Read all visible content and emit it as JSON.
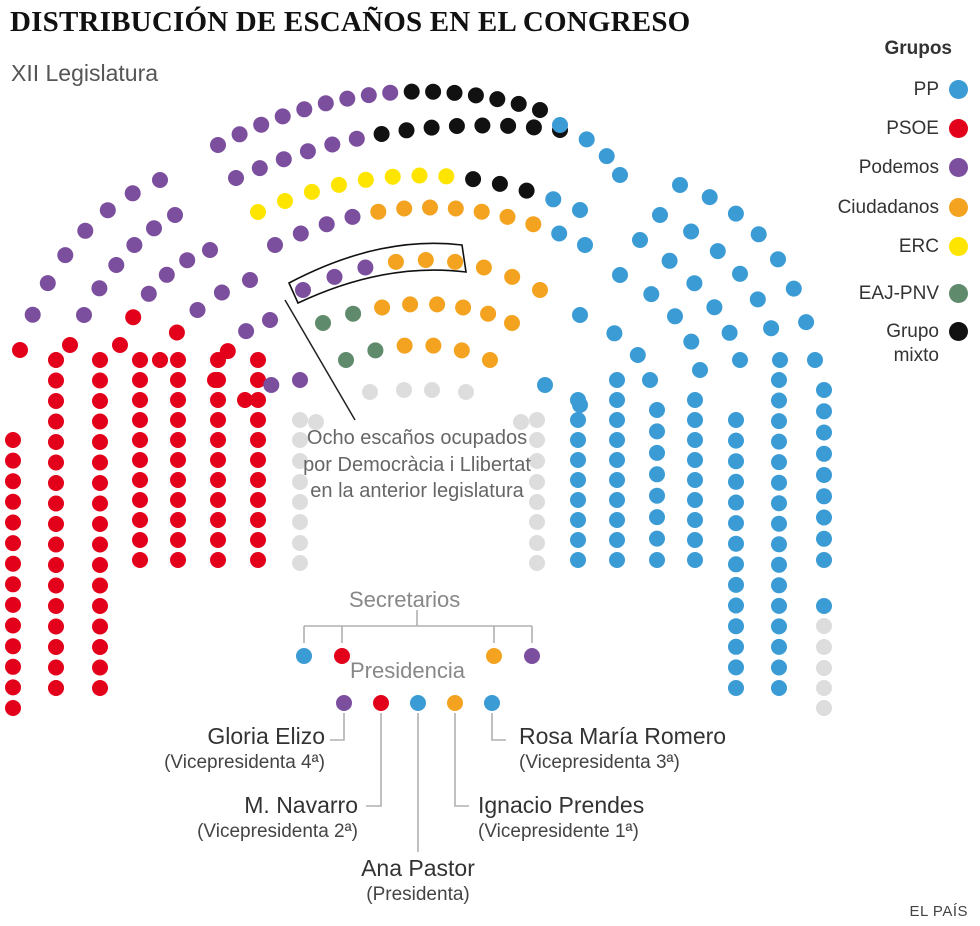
{
  "title": "DISTRIBUCIÓN DE ESCAÑOS EN EL CONGRESO",
  "subtitle": "XII Legislatura",
  "legend": {
    "title": "Grupos",
    "items": [
      {
        "label": "PP",
        "color": "#3a9bd5"
      },
      {
        "label": "PSOE",
        "color": "#e2001a"
      },
      {
        "label": "Podemos",
        "color": "#7b4f9e"
      },
      {
        "label": "Ciudadanos",
        "color": "#f3a320"
      },
      {
        "label": "ERC",
        "color": "#fde500"
      },
      {
        "label": "EAJ-PNV",
        "color": "#5f8a6c"
      },
      {
        "label": "Grupo mixto",
        "color": "#111111"
      }
    ]
  },
  "empty_color": "#dddddd",
  "note": "Ocho escaños ocupados por Democràcia i Llibertat en la anterior legislatura",
  "secretarios": {
    "label": "Secretarios",
    "parties": [
      "PP",
      "PSOE",
      "Ciudadanos",
      "Podemos"
    ]
  },
  "presidencia": {
    "label": "Presidencia",
    "members": [
      {
        "name": "Gloria Elizo",
        "role": "(Vicepresidenta 4ª)",
        "party": "Podemos"
      },
      {
        "name": "M. Navarro",
        "role": "(Vicepresidenta 2ª)",
        "party": "PSOE"
      },
      {
        "name": "Ana Pastor",
        "role": "(Presidenta)",
        "party": "PP"
      },
      {
        "name": "Ignacio Prendes",
        "role": "(Vicepresidente 1ª)",
        "party": "Ciudadanos"
      },
      {
        "name": "Rosa María Romero",
        "role": "(Vicepresidenta 3ª)",
        "party": "PP"
      }
    ]
  },
  "credit": "EL PAÍS"
}
